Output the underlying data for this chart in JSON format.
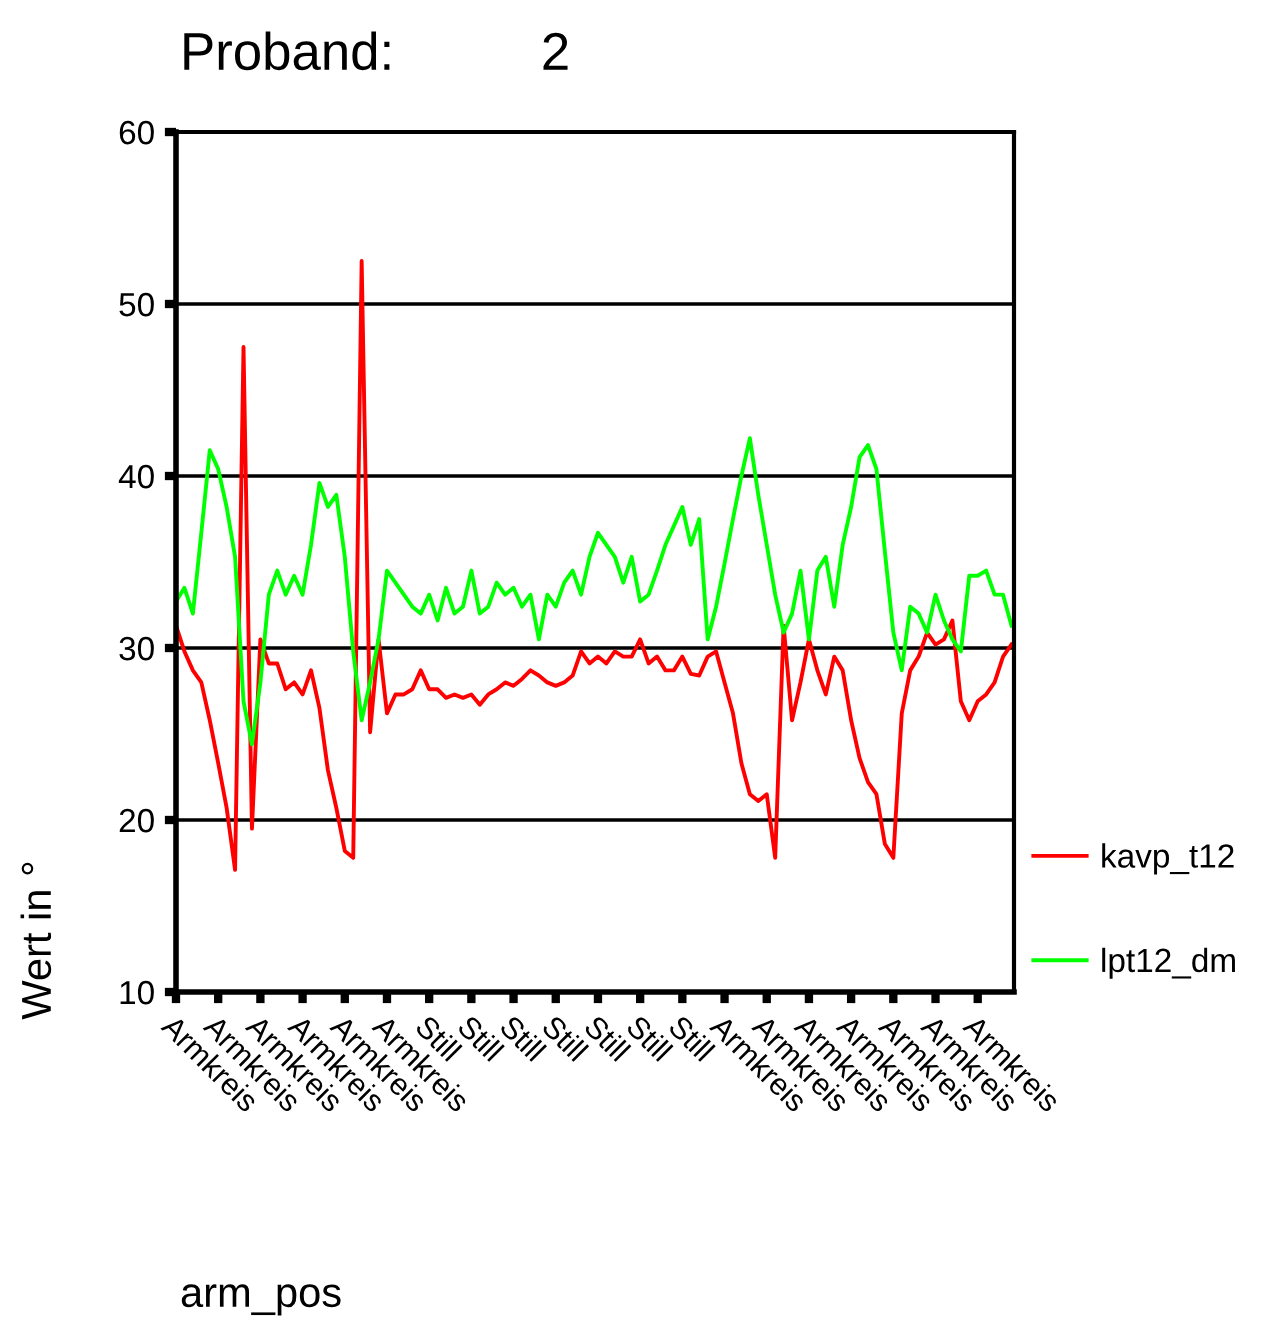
{
  "chart_data": {
    "type": "line",
    "title": "Proband:          2",
    "xlabel": "arm_pos",
    "ylabel": "Wert in °",
    "categories": [
      "Armkreis",
      null,
      null,
      null,
      null,
      "Armkreis",
      null,
      null,
      null,
      null,
      "Armkreis",
      null,
      null,
      null,
      null,
      "Armkreis",
      null,
      null,
      null,
      null,
      "Armkreis",
      null,
      null,
      null,
      null,
      "Armkreis",
      null,
      null,
      null,
      null,
      "Still",
      null,
      null,
      null,
      null,
      "Still",
      null,
      null,
      null,
      null,
      "Still",
      null,
      null,
      null,
      null,
      "Still",
      null,
      null,
      null,
      null,
      "Still",
      null,
      null,
      null,
      null,
      "Still",
      null,
      null,
      null,
      null,
      "Still",
      null,
      null,
      null,
      null,
      "Armkreis",
      null,
      null,
      null,
      null,
      "Armkreis",
      null,
      null,
      null,
      null,
      "Armkreis",
      null,
      null,
      null,
      null,
      "Armkreis",
      null,
      null,
      null,
      null,
      "Armkreis",
      null,
      null,
      null,
      null,
      "Armkreis",
      null,
      null,
      null,
      null,
      "Armkreis",
      null,
      null,
      null,
      null
    ],
    "series": [
      {
        "name": "kavp_t12",
        "color": "#ff0000",
        "values": [
          31.3,
          29.8,
          28.7,
          28,
          25.8,
          23.3,
          20.7,
          17.1,
          47.5,
          19.5,
          30.5,
          29.1,
          29.1,
          27.6,
          28,
          27.3,
          28.7,
          26.5,
          22.9,
          20.7,
          18.2,
          17.8,
          52.5,
          25.1,
          30.5,
          26.2,
          27.3,
          27.3,
          27.6,
          28.7,
          27.6,
          27.6,
          27.1,
          27.3,
          27.1,
          27.3,
          26.7,
          27.3,
          27.6,
          28,
          27.8,
          28.2,
          28.7,
          28.4,
          28,
          27.8,
          28,
          28.4,
          29.8,
          29.1,
          29.5,
          29.1,
          29.8,
          29.5,
          29.5,
          30.5,
          29.1,
          29.5,
          28.7,
          28.7,
          29.5,
          28.5,
          28.4,
          29.5,
          29.8,
          28,
          26.2,
          23.3,
          21.5,
          21.1,
          21.5,
          17.8,
          31.3,
          25.8,
          28,
          30.5,
          28.7,
          27.3,
          29.5,
          28.7,
          25.8,
          23.6,
          22.2,
          21.5,
          18.6,
          17.8,
          26.2,
          28.7,
          29.5,
          30.9,
          30.2,
          30.5,
          31.6,
          26.9,
          25.8,
          26.9,
          27.3,
          28,
          29.5,
          30.2
        ]
      },
      {
        "name": "lpt12_dm",
        "color": "#00ff00",
        "values": [
          32.7,
          33.5,
          32,
          36.7,
          41.5,
          40.4,
          38.2,
          35.3,
          26.9,
          24.4,
          28,
          33.1,
          34.5,
          33.1,
          34.2,
          33.1,
          36,
          39.6,
          38.2,
          38.9,
          35.3,
          29.8,
          25.8,
          28,
          30.5,
          34.5,
          33.8,
          33.1,
          32.4,
          32,
          33.1,
          31.6,
          33.5,
          32,
          32.4,
          34.5,
          32,
          32.4,
          33.8,
          33.1,
          33.5,
          32.4,
          33.1,
          30.5,
          33.1,
          32.4,
          33.8,
          34.5,
          33.1,
          35.3,
          36.7,
          36,
          35.3,
          33.8,
          35.3,
          32.7,
          33.1,
          34.5,
          36,
          37.1,
          38.2,
          36,
          37.5,
          30.5,
          32.4,
          34.9,
          37.5,
          40,
          42.2,
          38.9,
          36,
          33.1,
          30.9,
          32,
          34.5,
          30.5,
          34.5,
          35.3,
          32.4,
          36,
          38.2,
          41.1,
          41.8,
          40.4,
          35.6,
          30.9,
          28.7,
          32.4,
          32,
          30.9,
          33.1,
          31.6,
          30.5,
          29.8,
          34.2,
          34.2,
          34.5,
          33.1,
          33.1,
          31.3
        ]
      }
    ],
    "ylim": [
      10,
      60
    ],
    "yticks": [
      10,
      20,
      30,
      40,
      50,
      60
    ],
    "grid": "y",
    "legend": "right"
  }
}
